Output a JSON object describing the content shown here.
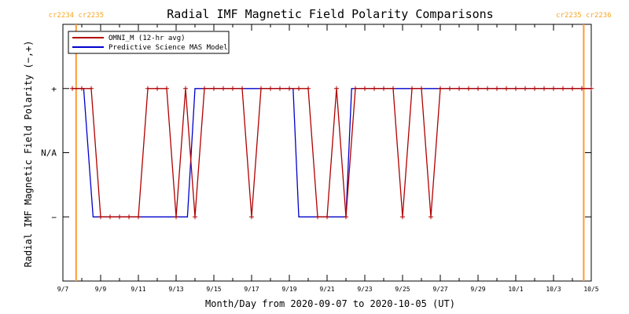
{
  "chart_data": {
    "type": "line",
    "title": "Radial IMF Magnetic Field Polarity Comparisons",
    "xlabel": "Month/Day from 2020-09-07 to 2020-10-05 (UT)",
    "ylabel": "Radial IMF Magnetic Field Polarity (−,+)",
    "x_tick_labels": [
      "9/7",
      "9/9",
      "9/11",
      "9/13",
      "9/15",
      "9/17",
      "9/19",
      "9/21",
      "9/23",
      "9/25",
      "9/27",
      "9/29",
      "10/1",
      "10/3",
      "10/5"
    ],
    "xlim": [
      0,
      28
    ],
    "ylim": [
      -2,
      2
    ],
    "y_ticks": [
      {
        "value": 1,
        "label": "+"
      },
      {
        "value": 0,
        "label": "N/A"
      },
      {
        "value": -1,
        "label": "−"
      }
    ],
    "carrington_markers": [
      {
        "x": 0.7,
        "label": "cr2234 cr2235",
        "color": "#ff9933"
      },
      {
        "x": 27.6,
        "label": "cr2235 cr2236",
        "color": "#ff9933"
      }
    ],
    "legend_position": "top-left",
    "series": [
      {
        "name": "OMNI_M (12-hr avg)",
        "color": "#b00000",
        "marker": "+",
        "points": [
          [
            0.5,
            1
          ],
          [
            1.0,
            1
          ],
          [
            1.5,
            1
          ],
          [
            2.0,
            -1
          ],
          [
            2.5,
            -1
          ],
          [
            3.0,
            -1
          ],
          [
            3.5,
            -1
          ],
          [
            4.0,
            -1
          ],
          [
            4.5,
            1
          ],
          [
            5.0,
            1
          ],
          [
            5.5,
            1
          ],
          [
            6.0,
            -1
          ],
          [
            6.5,
            1
          ],
          [
            7.0,
            -1
          ],
          [
            7.5,
            1
          ],
          [
            8.0,
            1
          ],
          [
            8.5,
            1
          ],
          [
            9.0,
            1
          ],
          [
            9.5,
            1
          ],
          [
            10.0,
            -1
          ],
          [
            10.5,
            1
          ],
          [
            11.0,
            1
          ],
          [
            11.5,
            1
          ],
          [
            12.0,
            1
          ],
          [
            12.5,
            1
          ],
          [
            13.0,
            1
          ],
          [
            13.5,
            -1
          ],
          [
            14.0,
            -1
          ],
          [
            14.5,
            1
          ],
          [
            15.0,
            -1
          ],
          [
            15.5,
            1
          ],
          [
            16.0,
            1
          ],
          [
            16.5,
            1
          ],
          [
            17.0,
            1
          ],
          [
            17.5,
            1
          ],
          [
            18.0,
            -1
          ],
          [
            18.5,
            1
          ],
          [
            19.0,
            1
          ],
          [
            19.5,
            -1
          ],
          [
            20.0,
            1
          ],
          [
            20.5,
            1
          ],
          [
            21.0,
            1
          ],
          [
            21.5,
            1
          ],
          [
            22.0,
            1
          ],
          [
            22.5,
            1
          ],
          [
            23.0,
            1
          ],
          [
            23.5,
            1
          ],
          [
            24.0,
            1
          ],
          [
            24.5,
            1
          ],
          [
            25.0,
            1
          ],
          [
            25.5,
            1
          ],
          [
            26.0,
            1
          ],
          [
            26.5,
            1
          ],
          [
            27.0,
            1
          ],
          [
            27.5,
            1
          ],
          [
            28.0,
            1
          ]
        ]
      },
      {
        "name": "Predictive Science MAS Model",
        "color": "#0000cc",
        "points": [
          [
            0.5,
            1
          ],
          [
            1.1,
            1
          ],
          [
            1.6,
            -1
          ],
          [
            6.6,
            -1
          ],
          [
            7.0,
            1
          ],
          [
            12.2,
            1
          ],
          [
            12.5,
            -1
          ],
          [
            15.0,
            -1
          ],
          [
            15.3,
            1
          ],
          [
            28.0,
            1
          ]
        ]
      }
    ]
  }
}
